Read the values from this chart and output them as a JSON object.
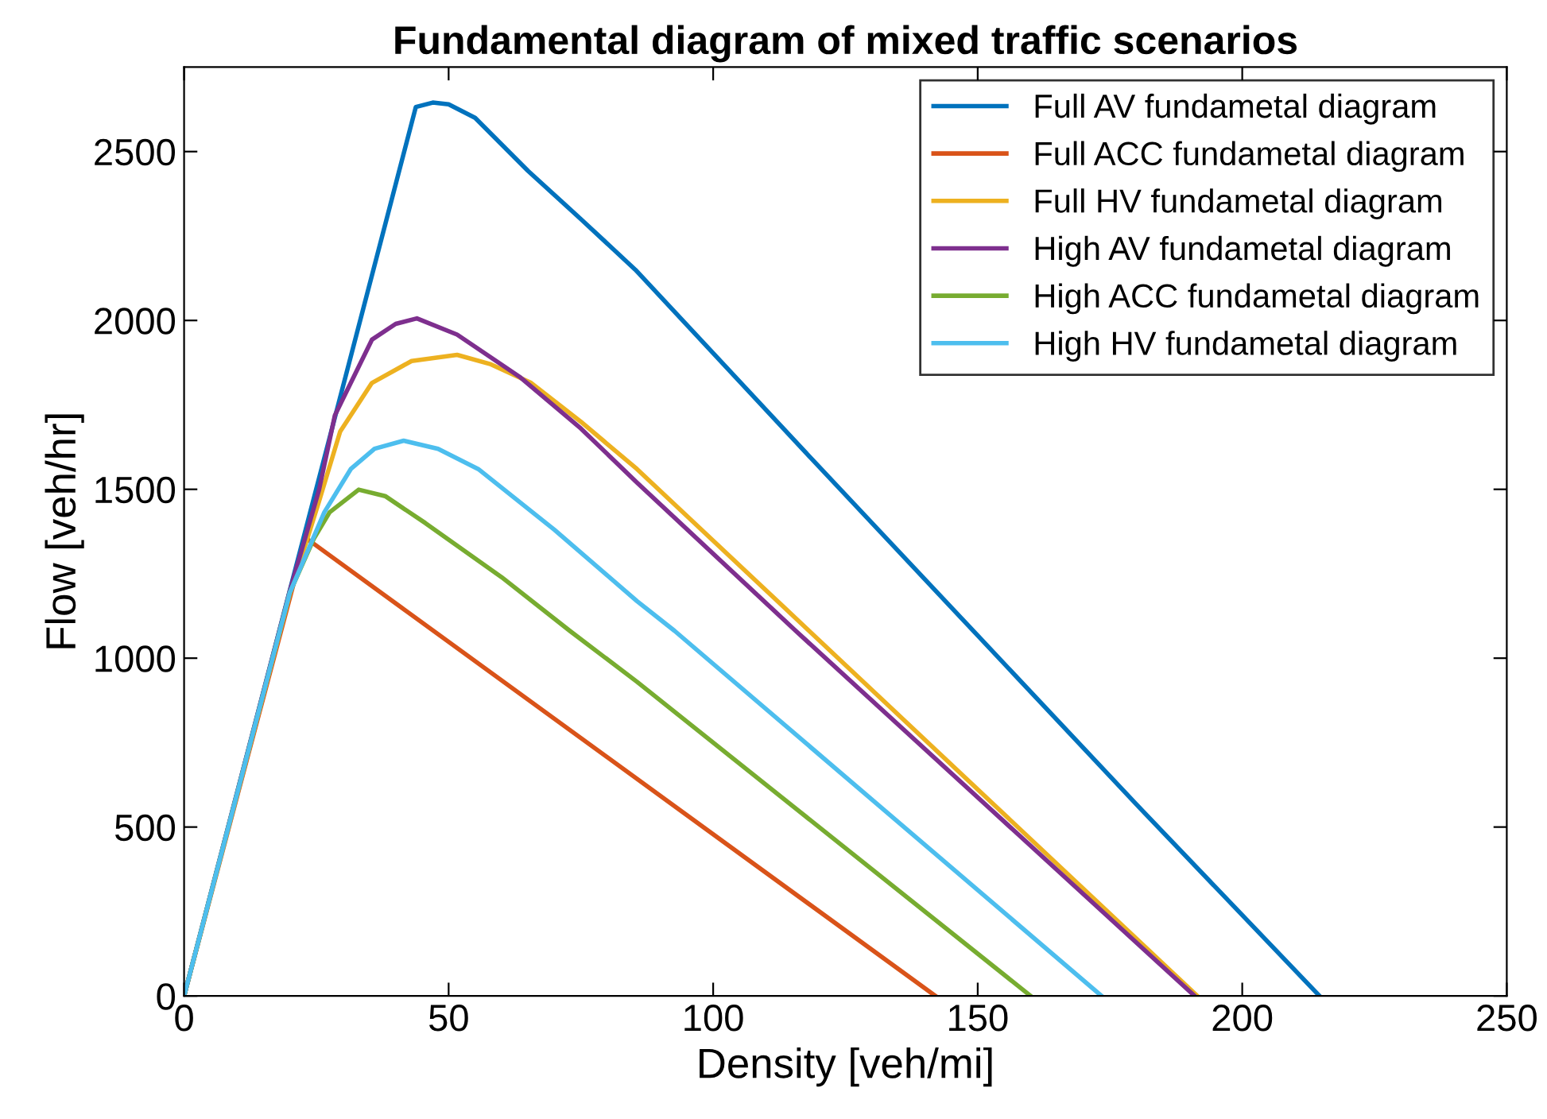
{
  "chart_data": {
    "type": "line",
    "title": "Fundamental diagram of mixed traffic scenarios",
    "xlabel": "Density [veh/mi]",
    "ylabel": "Flow [veh/hr]",
    "xlim": [
      0,
      250
    ],
    "ylim": [
      0,
      2750
    ],
    "xticks": [
      0,
      50,
      100,
      150,
      200,
      250
    ],
    "yticks": [
      0,
      500,
      1000,
      1500,
      2000,
      2500
    ],
    "grid": false,
    "legend": "top right",
    "line_style": "solid",
    "marker": "none",
    "series": [
      {
        "name": "Full AV fundametal diagram",
        "color": "#0072bd",
        "x": [
          0,
          43.8,
          47,
          50,
          55,
          65,
          75,
          85.3,
          120,
          150,
          180,
          214.6
        ],
        "values": [
          0,
          2632,
          2645,
          2640,
          2600,
          2443,
          2300,
          2150,
          1567,
          1067,
          567,
          0
        ]
      },
      {
        "name": "Full ACC fundametal diagram",
        "color": "#d95319",
        "x": [
          0,
          23,
          142
        ],
        "values": [
          0,
          1356,
          0
        ]
      },
      {
        "name": "Full HV fundametal diagram",
        "color": "#edb120",
        "x": [
          0,
          20,
          25.5,
          29.5,
          35.5,
          43,
          51.6,
          58,
          65.6,
          75,
          85.6,
          118.2,
          191.5
        ],
        "values": [
          0,
          1190,
          1464,
          1671,
          1815,
          1880,
          1898,
          1870,
          1815,
          1700,
          1560,
          1080,
          0
        ]
      },
      {
        "name": "High AV fundametal diagram",
        "color": "#7e2f8e",
        "x": [
          0,
          20,
          25.5,
          28.5,
          35.5,
          40,
          44,
          51.6,
          63.6,
          75,
          85.6,
          115.6,
          191
        ],
        "values": [
          0,
          1200,
          1498,
          1719,
          1943,
          1990,
          2006,
          1958,
          1831,
          1680,
          1520,
          1081,
          0
        ]
      },
      {
        "name": "High ACC fundametal diagram",
        "color": "#77ac30",
        "x": [
          0,
          20,
          24.5,
          27.5,
          33,
          38,
          45.6,
          60,
          72.9,
          85.6,
          160
        ],
        "values": [
          0,
          1195,
          1353,
          1432,
          1499,
          1480,
          1400,
          1240,
          1081,
          930,
          0
        ]
      },
      {
        "name": "High HV fundametal diagram",
        "color": "#4dbeee",
        "x": [
          0,
          20,
          26.5,
          31.5,
          36,
          41.5,
          48,
          55.6,
          70,
          85.6,
          92.7,
          173.4
        ],
        "values": [
          0,
          1195,
          1432,
          1560,
          1620,
          1644,
          1620,
          1560,
          1380,
          1169,
          1081,
          0
        ]
      }
    ]
  }
}
